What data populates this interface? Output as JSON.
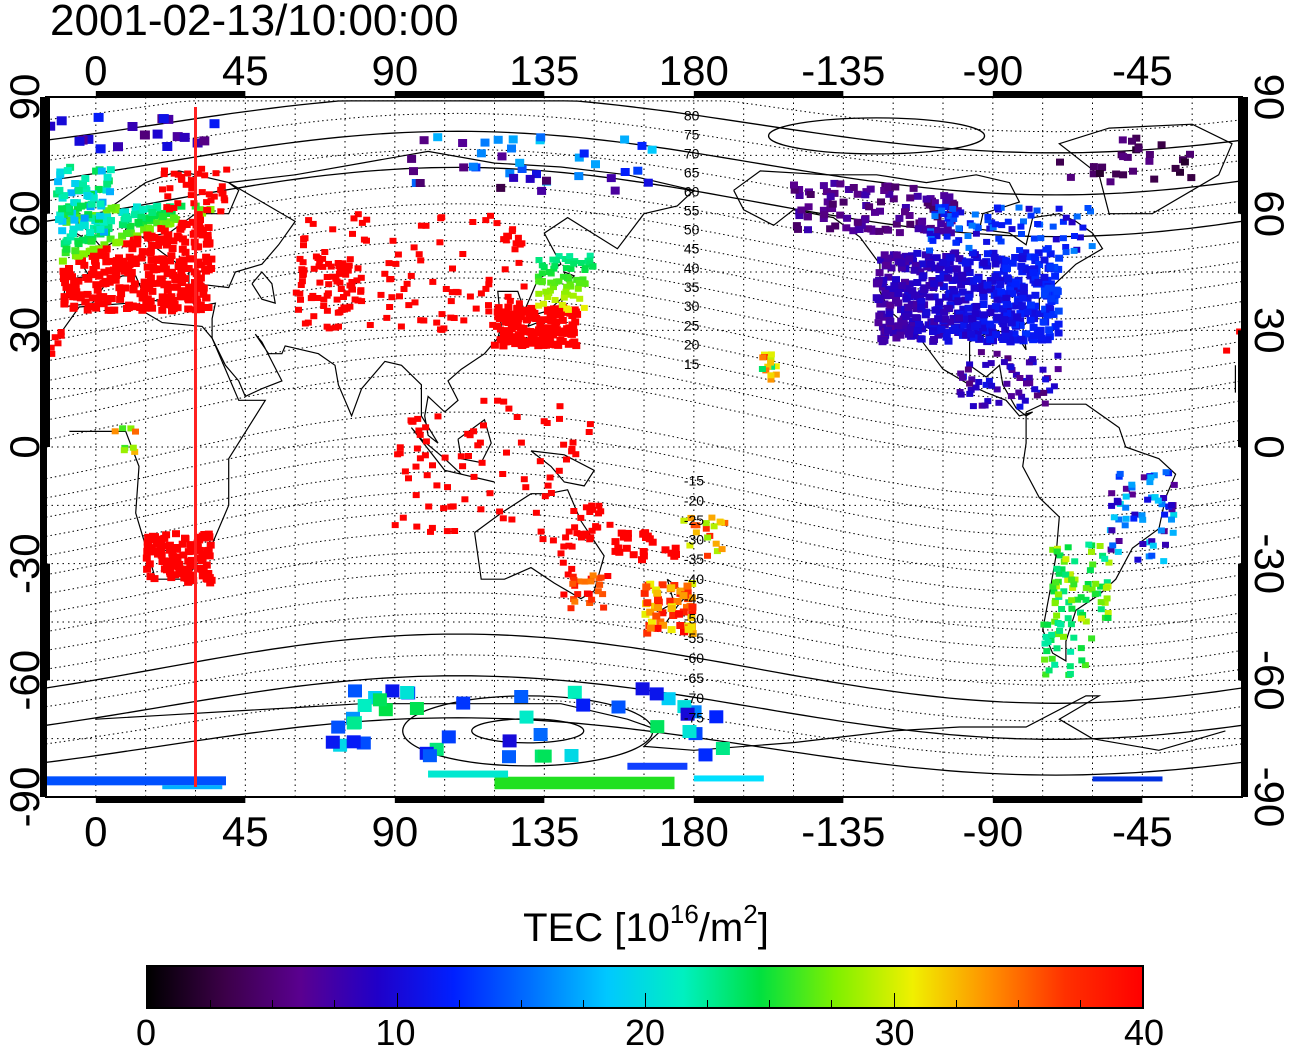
{
  "timestamp": "2001-02-13/10:00:00",
  "map": {
    "projection": "equirectangular",
    "lon_center": 165,
    "lon_range": [
      -15,
      345
    ],
    "lat_range": [
      -90,
      90
    ],
    "grid": "dotted",
    "top_axis_labels": [
      "0",
      "45",
      "90",
      "135",
      "180",
      "-135",
      "-90",
      "-45"
    ],
    "bottom_axis_labels": [
      "0",
      "45",
      "90",
      "135",
      "180",
      "-135",
      "-90",
      "-45"
    ],
    "top_axis_lons": [
      0,
      45,
      90,
      135,
      180,
      225,
      270,
      315
    ],
    "left_axis_labels": [
      "90",
      "60",
      "30",
      "0",
      "-30",
      "-60",
      "-90"
    ],
    "right_axis_labels": [
      "90",
      "60",
      "30",
      "0",
      "-30",
      "-60",
      "-90"
    ],
    "lat_ticks": [
      90,
      60,
      30,
      0,
      -30,
      -60,
      -90
    ],
    "marker_line_lon": 30,
    "marker_line_color": "#ff2020",
    "magnetic_contour_labels": [
      "80",
      "75",
      "70",
      "65",
      "60",
      "55",
      "50",
      "45",
      "40",
      "35",
      "30",
      "25",
      "20",
      "15",
      "-15",
      "-20",
      "-25",
      "-30",
      "-35",
      "-40",
      "-45",
      "-50",
      "-55",
      "-60",
      "-65",
      "-70",
      "-75"
    ]
  },
  "colorbar": {
    "title_prefix": "TEC  [10",
    "title_exp": "16",
    "title_mid": "/m",
    "title_exp2": "2",
    "title_suffix": "]",
    "min": 0,
    "max": 40,
    "tick_labels": [
      "0",
      "10",
      "20",
      "30",
      "40"
    ],
    "colors": [
      "#000000",
      "#3c0048",
      "#5a0090",
      "#2000c8",
      "#0020ff",
      "#0070ff",
      "#00c8ff",
      "#00f0c0",
      "#00e040",
      "#80f000",
      "#f0f000",
      "#ff9000",
      "#ff3000",
      "#ff0000"
    ]
  }
}
